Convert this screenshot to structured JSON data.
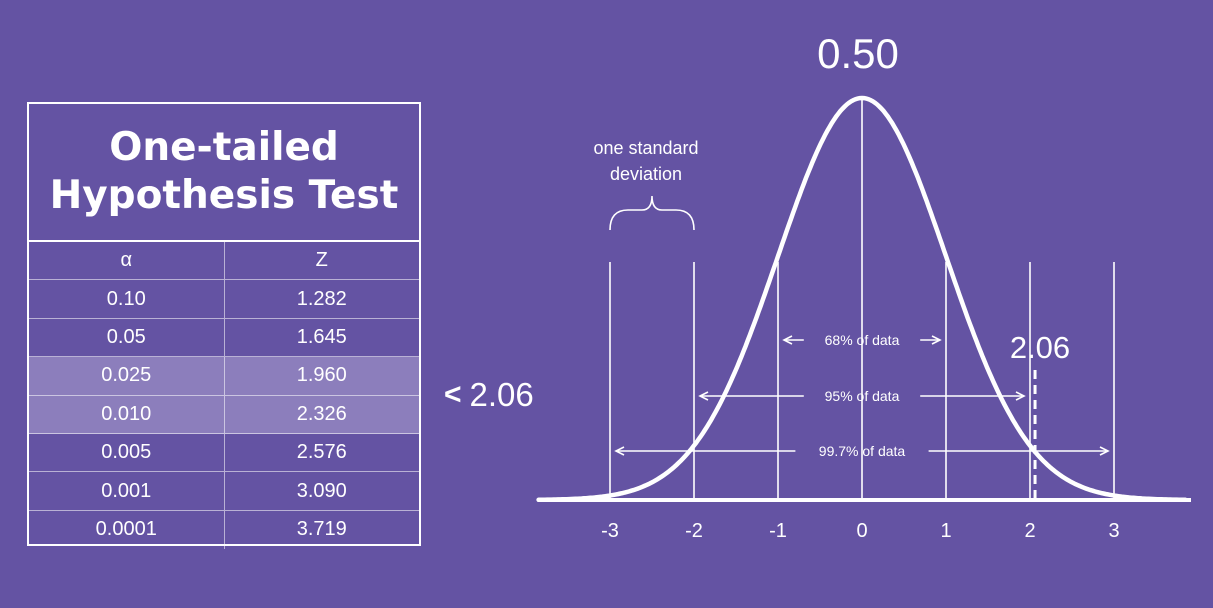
{
  "table": {
    "title_line1": "One-tailed",
    "title_line2": "Hypothesis Test",
    "header": {
      "alpha": "α",
      "z": "Z"
    },
    "rows": [
      {
        "alpha": "0.10",
        "z": "1.282",
        "highlight": false
      },
      {
        "alpha": "0.05",
        "z": "1.645",
        "highlight": false
      },
      {
        "alpha": "0.025",
        "z": "1.960",
        "highlight": true
      },
      {
        "alpha": "0.010",
        "z": "2.326",
        "highlight": true
      },
      {
        "alpha": "0.005",
        "z": "2.576",
        "highlight": false
      },
      {
        "alpha": "0.001",
        "z": "3.090",
        "highlight": false
      },
      {
        "alpha": "0.0001",
        "z": "3.719",
        "highlight": false
      }
    ],
    "highlight_color": "#8c7ebc"
  },
  "comparison": {
    "symbol": "<",
    "value": "2.06"
  },
  "curve": {
    "peak_label": "0.50",
    "test_stat_label": "2.06",
    "test_stat_value": 2.06,
    "sd_label_line1": "one standard",
    "sd_label_line2": "deviation",
    "ticks": [
      "-3",
      "-2",
      "-1",
      "0",
      "1",
      "2",
      "3"
    ],
    "intervals": [
      {
        "label": "68% of data",
        "from": -1,
        "to": 1
      },
      {
        "label": "95% of data",
        "from": -2,
        "to": 2
      },
      {
        "label": "99.7% of data",
        "from": -3,
        "to": 3
      }
    ]
  },
  "colors": {
    "background": "#6453a3",
    "foreground": "#ffffff"
  }
}
